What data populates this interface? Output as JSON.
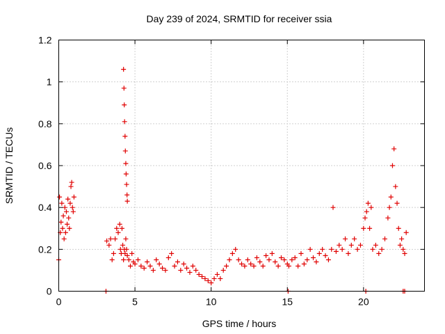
{
  "chart_data": {
    "type": "scatter",
    "title": "Day 239 of 2024, SRMTID for receiver ssia",
    "xlabel": "GPS time / hours",
    "ylabel": "SRMTID / TECUs",
    "xlim": [
      0,
      24
    ],
    "ylim": [
      0,
      1.2
    ],
    "x_ticks": [
      0,
      5,
      10,
      15,
      20
    ],
    "y_ticks": [
      0,
      0.2,
      0.4,
      0.6,
      0.8,
      1.0,
      1.2
    ],
    "x_tick_labels": [
      "0",
      "5",
      "10",
      "15",
      "20"
    ],
    "y_tick_labels": [
      "0",
      "0.2",
      "0.4",
      "0.6",
      "0.8",
      "1",
      "1.2"
    ],
    "grid": true,
    "marker": "plus",
    "series": [
      {
        "name": "ssia",
        "color": "#e00000",
        "x": [
          0.0,
          0.05,
          0.1,
          0.15,
          0.2,
          0.25,
          0.3,
          0.35,
          0.4,
          0.45,
          0.5,
          0.55,
          0.6,
          0.65,
          0.7,
          0.75,
          0.8,
          0.85,
          0.9,
          0.95,
          1.0,
          3.15,
          3.3,
          3.4,
          3.5,
          3.6,
          3.7,
          3.8,
          3.9,
          4.0,
          4.05,
          4.1,
          4.15,
          4.2,
          4.25,
          4.3,
          4.35,
          4.4,
          4.45,
          4.5,
          4.6,
          4.7,
          4.8,
          4.9,
          5.0,
          5.2,
          5.4,
          5.6,
          5.8,
          6.0,
          6.2,
          6.4,
          6.6,
          6.8,
          7.0,
          7.2,
          7.4,
          7.6,
          7.8,
          8.0,
          8.2,
          8.4,
          8.6,
          8.8,
          9.0,
          9.2,
          9.4,
          9.6,
          9.8,
          10.0,
          10.2,
          10.4,
          10.6,
          10.8,
          11.0,
          11.2,
          11.4,
          11.6,
          11.8,
          12.0,
          12.2,
          12.4,
          12.6,
          12.8,
          13.0,
          13.2,
          13.4,
          13.6,
          13.8,
          14.0,
          14.2,
          14.4,
          14.6,
          14.8,
          15.0,
          15.1,
          15.3,
          15.5,
          15.7,
          15.9,
          16.1,
          16.3,
          16.5,
          16.7,
          16.9,
          17.1,
          17.3,
          17.5,
          17.7,
          17.9,
          18.0,
          18.2,
          18.4,
          18.6,
          18.8,
          19.0,
          19.2,
          19.4,
          19.6,
          19.8,
          20.0,
          20.1,
          20.2,
          20.3,
          20.4,
          20.5,
          20.6,
          20.8,
          21.0,
          21.2,
          21.4,
          21.6,
          21.7,
          21.8,
          21.9,
          22.0,
          22.1,
          22.2,
          22.3,
          22.4,
          22.5,
          22.6,
          22.7,
          22.8,
          4.25,
          4.28,
          4.3,
          4.32,
          4.35,
          4.37,
          4.4,
          4.42,
          4.45,
          4.48,
          4.5,
          3.1,
          15.05,
          20.15,
          22.6,
          22.7
        ],
        "y": [
          0.15,
          0.45,
          0.28,
          0.33,
          0.42,
          0.3,
          0.36,
          0.25,
          0.4,
          0.28,
          0.38,
          0.32,
          0.44,
          0.35,
          0.3,
          0.42,
          0.5,
          0.52,
          0.4,
          0.38,
          0.45,
          0.24,
          0.22,
          0.25,
          0.15,
          0.18,
          0.25,
          0.3,
          0.28,
          0.32,
          0.2,
          0.18,
          0.3,
          0.22,
          0.15,
          0.2,
          0.18,
          0.25,
          0.2,
          0.17,
          0.15,
          0.12,
          0.18,
          0.14,
          0.13,
          0.15,
          0.12,
          0.11,
          0.14,
          0.12,
          0.1,
          0.15,
          0.13,
          0.11,
          0.1,
          0.16,
          0.18,
          0.12,
          0.14,
          0.1,
          0.13,
          0.11,
          0.09,
          0.12,
          0.1,
          0.08,
          0.07,
          0.06,
          0.05,
          0.04,
          0.06,
          0.08,
          0.06,
          0.1,
          0.12,
          0.15,
          0.18,
          0.2,
          0.15,
          0.13,
          0.12,
          0.15,
          0.13,
          0.12,
          0.16,
          0.14,
          0.12,
          0.17,
          0.15,
          0.18,
          0.14,
          0.12,
          0.16,
          0.15,
          0.13,
          0.12,
          0.15,
          0.16,
          0.12,
          0.18,
          0.13,
          0.15,
          0.2,
          0.16,
          0.14,
          0.18,
          0.2,
          0.17,
          0.15,
          0.2,
          0.4,
          0.19,
          0.22,
          0.2,
          0.25,
          0.18,
          0.22,
          0.25,
          0.2,
          0.22,
          0.3,
          0.35,
          0.38,
          0.42,
          0.3,
          0.4,
          0.2,
          0.22,
          0.18,
          0.2,
          0.25,
          0.35,
          0.4,
          0.45,
          0.6,
          0.68,
          0.5,
          0.42,
          0.3,
          0.22,
          0.25,
          0.2,
          0.18,
          0.28,
          1.06,
          0.97,
          0.89,
          0.81,
          0.74,
          0.67,
          0.61,
          0.56,
          0.51,
          0.46,
          0.43,
          0.0,
          0.0,
          0.0,
          0.0,
          0.0
        ]
      }
    ]
  }
}
